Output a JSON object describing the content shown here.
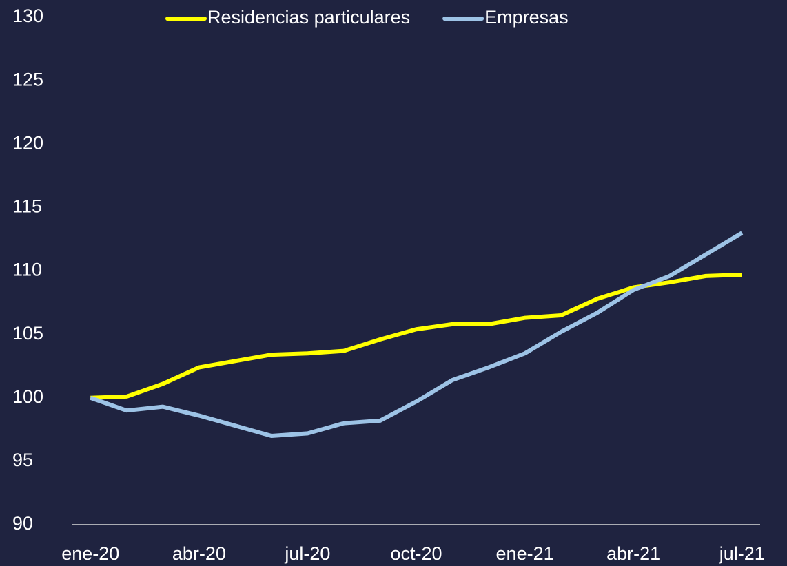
{
  "chart_data": {
    "type": "line",
    "categories": [
      "ene-20",
      null,
      null,
      "abr-20",
      null,
      null,
      "jul-20",
      null,
      null,
      "oct-20",
      null,
      null,
      "ene-21",
      null,
      null,
      "abr-21",
      null,
      null,
      "jul-21"
    ],
    "series": [
      {
        "name": "Residencias particulares",
        "color": "#ffff00",
        "values": [
          100,
          100.1,
          101.1,
          102.4,
          102.9,
          103.4,
          103.5,
          103.7,
          104.6,
          105.4,
          105.8,
          105.8,
          106.3,
          106.5,
          107.8,
          108.7,
          109.1,
          109.6,
          109.7
        ]
      },
      {
        "name": "Empresas",
        "color": "#9dc3e6",
        "values": [
          100,
          99.0,
          99.3,
          98.6,
          97.8,
          97.0,
          97.2,
          98.0,
          98.2,
          99.7,
          101.4,
          102.4,
          103.5,
          105.2,
          106.7,
          108.5,
          109.6,
          111.3,
          113.0
        ]
      }
    ],
    "ylim": [
      90,
      130
    ],
    "yticks": [
      90,
      95,
      100,
      105,
      110,
      115,
      120,
      125,
      130
    ],
    "grid": false,
    "legend": "top"
  }
}
